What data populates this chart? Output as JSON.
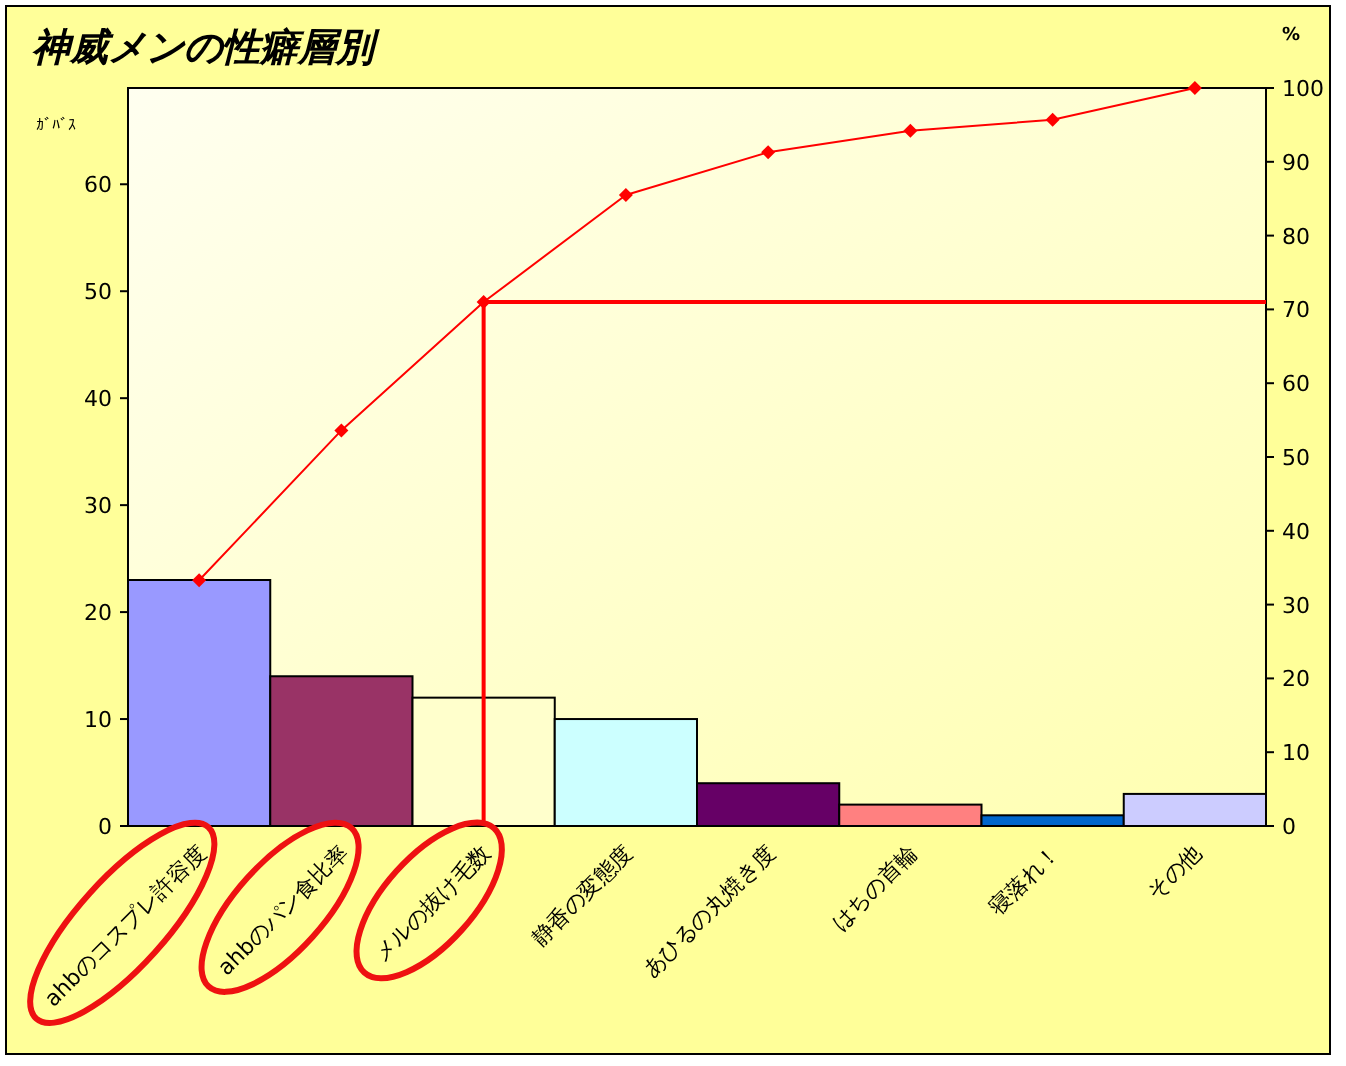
{
  "chart_data": {
    "type": "bar",
    "title": "神威メンの性癖層別",
    "ylabel": "ｶﾞﾊﾞｽ",
    "y2label": "%",
    "categories": [
      "ahbのコスプレ許容度",
      "ahbのパン食比率",
      "メルの抜け毛数",
      "静香の変態度",
      "あひるの丸焼き度",
      "はちの首輪",
      "寝落れ！",
      "その他"
    ],
    "series": [
      {
        "colors": [
          "#9999ff",
          "#993366",
          "#ffffcc",
          "#ccffff",
          "#660066",
          "#ff8080",
          "#0066cc",
          "#ccccff"
        ],
        "values": [
          23,
          14,
          12,
          10,
          4,
          2,
          1,
          3
        ]
      },
      {
        "type": "line",
        "axis": "y2",
        "color": "#ff0000",
        "marker": "diamond",
        "values": [
          33.3,
          53.6,
          71.0,
          85.5,
          91.3,
          94.2,
          95.7,
          100
        ]
      }
    ],
    "ref_lines": [
      {
        "axis": "y2",
        "value": 71.0,
        "color": "#ff0000"
      }
    ],
    "ylim": [
      0,
      69
    ],
    "yticks": [
      0,
      10,
      20,
      30,
      40,
      50,
      60
    ],
    "y2lim": [
      0,
      100
    ],
    "y2ticks": [
      0,
      10,
      20,
      30,
      40,
      50,
      60,
      70,
      80,
      90,
      100
    ]
  }
}
